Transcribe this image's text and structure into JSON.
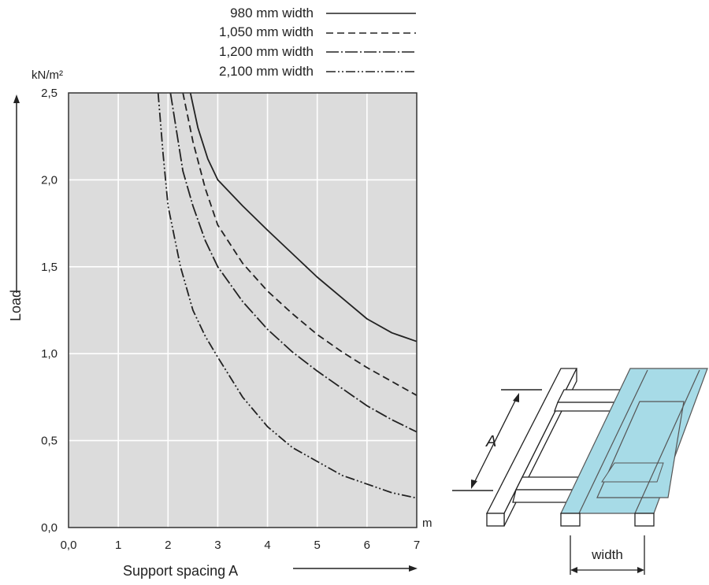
{
  "chart_data": {
    "type": "line",
    "y_unit": "kN/m²",
    "x_unit": "m",
    "ylabel": "Load",
    "xlabel": "Support spacing A",
    "xlim": [
      0,
      7
    ],
    "ylim": [
      0,
      2.5
    ],
    "x_ticks": [
      "0,0",
      "1",
      "2",
      "3",
      "4",
      "5",
      "6",
      "7"
    ],
    "y_ticks": [
      "0,0",
      "0,5",
      "1,0",
      "1,5",
      "2,0",
      "2,5"
    ],
    "grid": true,
    "legend_position": "top",
    "series": [
      {
        "name": "980 mm width",
        "dash": "solid",
        "x": [
          2.45,
          2.6,
          2.8,
          3.0,
          3.5,
          4.0,
          5.0,
          6.0,
          6.5,
          7.0
        ],
        "y": [
          2.5,
          2.3,
          2.12,
          2.0,
          1.85,
          1.71,
          1.44,
          1.2,
          1.12,
          1.07
        ]
      },
      {
        "name": "1,050 mm width",
        "dash": "dash",
        "x": [
          2.3,
          2.5,
          2.75,
          3.0,
          3.5,
          4.0,
          4.5,
          5.0,
          5.5,
          6.0,
          6.5,
          7.0
        ],
        "y": [
          2.5,
          2.22,
          1.95,
          1.74,
          1.52,
          1.36,
          1.23,
          1.11,
          1.01,
          0.92,
          0.84,
          0.76
        ]
      },
      {
        "name": "1,200 mm width",
        "dash": "dashdot",
        "x": [
          2.05,
          2.3,
          2.5,
          2.75,
          3.0,
          3.5,
          4.0,
          4.5,
          5.0,
          5.5,
          6.0,
          6.5,
          7.0
        ],
        "y": [
          2.5,
          2.05,
          1.85,
          1.65,
          1.5,
          1.3,
          1.14,
          1.01,
          0.9,
          0.8,
          0.7,
          0.62,
          0.55
        ]
      },
      {
        "name": "2,100 mm width",
        "dash": "dashdotdot",
        "x": [
          1.8,
          1.9,
          2.0,
          2.25,
          2.5,
          2.75,
          3.0,
          3.5,
          4.0,
          4.5,
          5.0,
          5.5,
          6.0,
          6.5,
          7.0
        ],
        "y": [
          2.5,
          2.15,
          1.85,
          1.5,
          1.25,
          1.1,
          0.98,
          0.75,
          0.58,
          0.46,
          0.38,
          0.3,
          0.25,
          0.2,
          0.17
        ]
      }
    ]
  },
  "diagram": {
    "dimension_label": "A",
    "width_label": "width",
    "deck_color": "#a7dbe7"
  }
}
